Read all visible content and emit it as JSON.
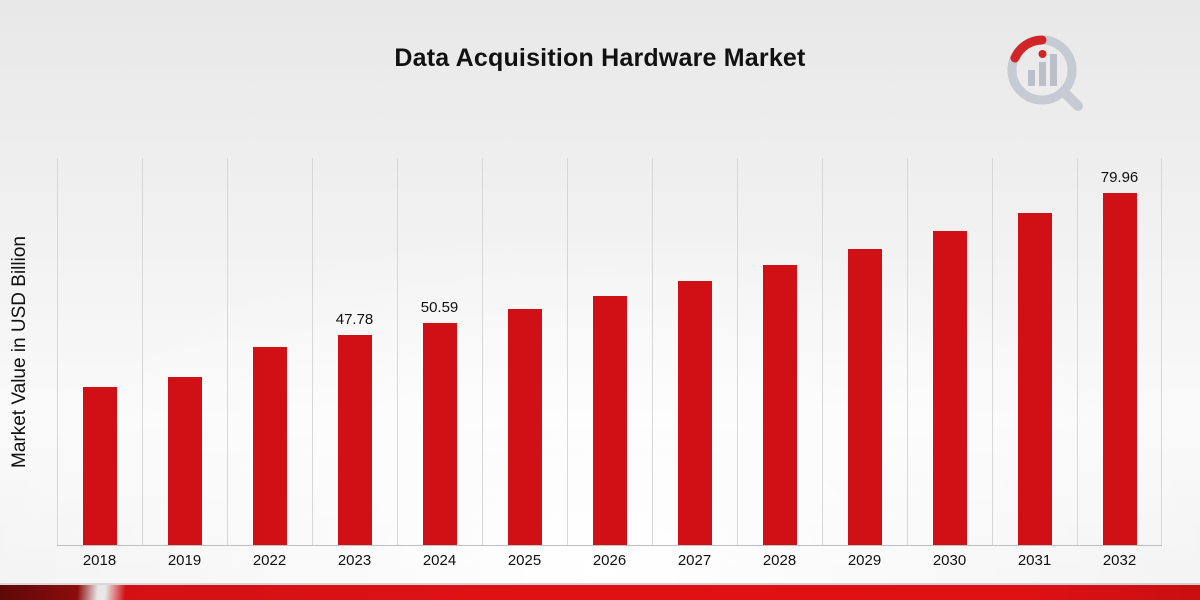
{
  "title": "Data Acquisition Hardware Market",
  "y_axis_label": "Market Value in USD Billion",
  "chart_data": {
    "type": "bar",
    "categories": [
      "2018",
      "2019",
      "2022",
      "2023",
      "2024",
      "2025",
      "2026",
      "2027",
      "2028",
      "2029",
      "2030",
      "2031",
      "2032"
    ],
    "values": [
      35.85,
      38.1,
      45.02,
      47.78,
      50.59,
      53.57,
      56.72,
      60.06,
      63.6,
      67.35,
      71.31,
      75.51,
      79.96
    ],
    "data_labels_shown": [
      "2023",
      "2024",
      "2032"
    ],
    "data_label_values": {
      "2023": "47.78",
      "2024": "50.59",
      "2032": "79.96"
    },
    "title": "Data Acquisition Hardware Market",
    "xlabel": "",
    "ylabel": "Market Value in USD Billion",
    "ylim": [
      0,
      88
    ],
    "grid": "vertical",
    "legend": "none",
    "bar_color": "#d01014",
    "gridline_color": "#d7d7d7",
    "axis_line_color": "#bfbfbf"
  },
  "logo": {
    "name": "market-research-magnifier-logo",
    "accent_color": "#d01014",
    "gray_color": "#c3c7d0"
  }
}
